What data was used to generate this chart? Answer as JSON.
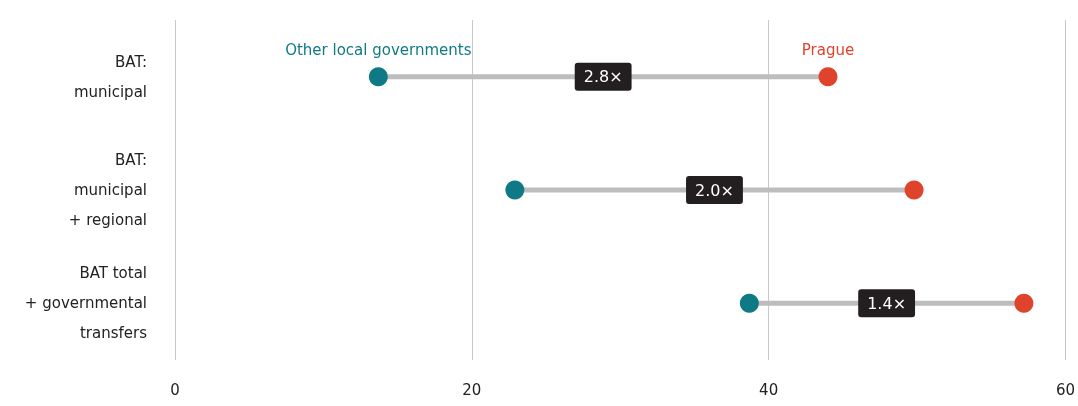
{
  "chart_data": {
    "type": "scatter",
    "orientation": "horizontal",
    "categories": [
      "BAT:\nmunicipal",
      "BAT:\nmunicipal\n+ regional",
      "BAT total\n+ governmental\ntransfers"
    ],
    "series": [
      {
        "name": "Other local governments",
        "color": "#0f7a85",
        "values": [
          13.7,
          22.9,
          38.7
        ]
      },
      {
        "name": "Prague",
        "color": "#e0432b",
        "values": [
          44.0,
          49.8,
          57.2
        ]
      }
    ],
    "annotations": [
      "2.8×",
      "2.0×",
      "1.4×"
    ],
    "xlim": [
      0,
      60
    ],
    "xticks": [
      0,
      20,
      40,
      60
    ],
    "grid": "x",
    "legend": false,
    "marker": "circle"
  }
}
